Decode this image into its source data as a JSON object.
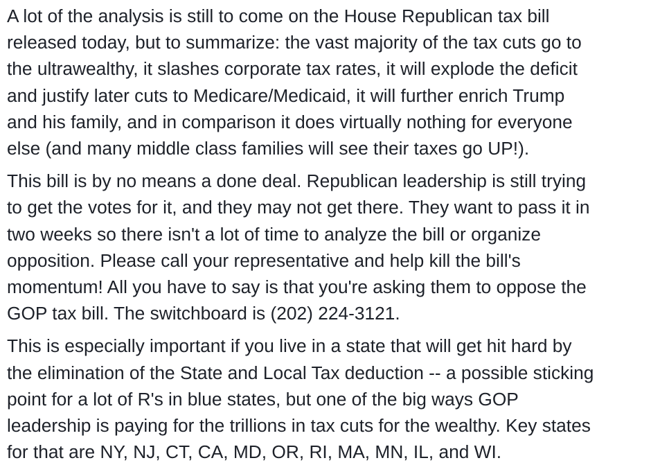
{
  "post": {
    "paragraphs": [
      {
        "lines": [
          "A lot of the analysis is still to come on the House Republican tax bill",
          "released today, but to summarize: the vast majority of the tax cuts go to",
          "the ultrawealthy, it slashes corporate tax rates, it will explode the deficit",
          "and justify later cuts to Medicare/Medicaid, it will further enrich Trump",
          "and his family, and in comparison it does virtually nothing for everyone",
          "else (and many middle class families will see their taxes go UP!)."
        ]
      },
      {
        "lines": [
          "This bill is by no means a done deal. Republican leadership is still trying",
          "to get the votes for it, and they may not get there. They want to pass it in",
          "two weeks so there isn't a lot of time to analyze the bill or organize",
          "opposition. Please call your representative and help kill the bill's",
          "momentum! All you have to say is that you're asking them to oppose the",
          "GOP tax bill. The switchboard is (202) 224-3121."
        ]
      },
      {
        "lines": [
          "This is especially important if you live in a state that will get hit hard by",
          "the elimination of the State and Local Tax deduction -- a possible sticking",
          "point for a lot of R's in blue states, but one of the big ways GOP",
          "leadership is paying for the trillions in tax cuts for the wealthy. Key states",
          "for that are NY, NJ, CT, CA, MD, OR, RI, MA, MN, IL, and WI."
        ]
      }
    ]
  }
}
